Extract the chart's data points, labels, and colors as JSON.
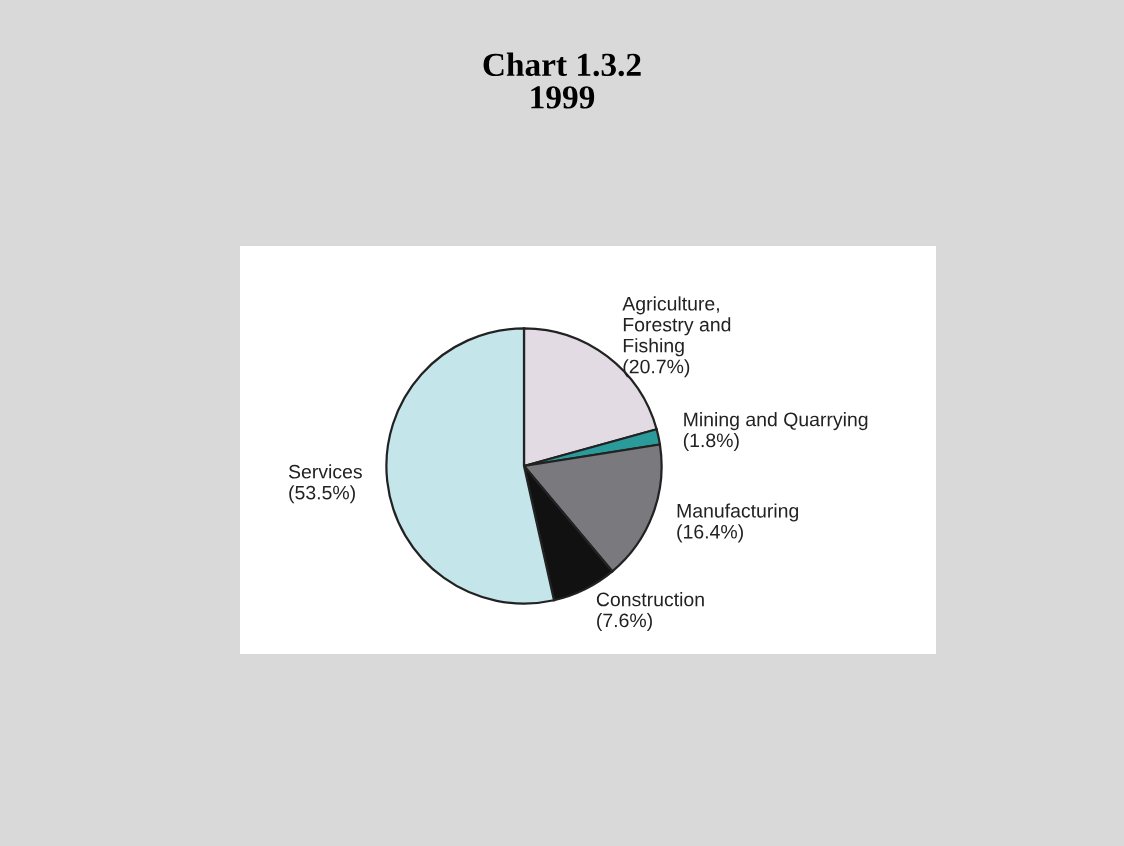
{
  "chart_data": {
    "type": "pie",
    "title": "Chart 1.3.2\n1999",
    "categories": [
      "Agriculture,\nForestry and\nFishing",
      "Mining and Quarrying",
      "Manufacturing",
      "Construction",
      "Services"
    ],
    "values": [
      20.7,
      1.8,
      16.4,
      7.6,
      53.5
    ],
    "value_labels": [
      "(20.7%)",
      "(1.8%)",
      "(16.4%)",
      "(7.6%)",
      "(53.5%)"
    ],
    "colors": [
      "#e2dbe3",
      "#2a9a9a",
      "#7a7a7e",
      "#111111",
      "#c4e6ea"
    ]
  }
}
